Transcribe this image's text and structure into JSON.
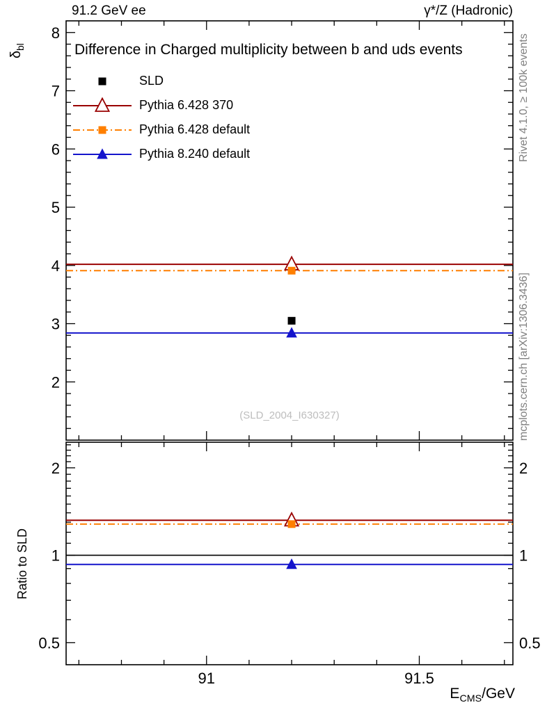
{
  "chart_data": {
    "type": "line",
    "header": {
      "left": "91.2 GeV ee",
      "right": "γ*/Z (Hadronic)"
    },
    "title": "Difference in Charged multiplicity between b and uds events",
    "watermark": "(SLD_2004_I630327)",
    "side_notes": {
      "top_right": "Rivet 4.1.0, ≥ 100k events",
      "bottom_right": "mcplots.cern.ch [arXiv:1306.3436]"
    },
    "x_axis": {
      "label_parts": {
        "symbol": "E",
        "subscript": "CMS",
        "suffix": "/GeV"
      },
      "lim": [
        90.67,
        91.72
      ],
      "major_ticks": [
        {
          "v": 91,
          "label": "91"
        },
        {
          "v": 91.5,
          "label": "91.5"
        }
      ],
      "minor_step": 0.1,
      "data_x": 91.2
    },
    "main_panel": {
      "y_label_parts": {
        "symbol": "δ",
        "subscript": "bl"
      },
      "scale": "linear",
      "ylim": [
        1.0,
        8.2
      ],
      "major_ticks": [
        {
          "v": 2,
          "label": "2"
        },
        {
          "v": 3,
          "label": "3"
        },
        {
          "v": 4,
          "label": "4"
        },
        {
          "v": 5,
          "label": "5"
        },
        {
          "v": 6,
          "label": "6"
        },
        {
          "v": 7,
          "label": "7"
        },
        {
          "v": 8,
          "label": "8"
        }
      ],
      "minor_step": 0.2
    },
    "ratio_panel": {
      "y_label": "Ratio to SLD",
      "scale": "log",
      "ylim": [
        0.42,
        2.45
      ],
      "major_ticks": [
        {
          "v": 0.5,
          "label": "0.5"
        },
        {
          "v": 1,
          "label": "1"
        },
        {
          "v": 2,
          "label": "2"
        }
      ],
      "minor_ticks": [
        0.6,
        0.7,
        0.8,
        0.9,
        1.1,
        1.2,
        1.3,
        1.4,
        1.5,
        1.6,
        1.7,
        1.8,
        1.9,
        2.1,
        2.2,
        2.3,
        2.4
      ]
    },
    "series": [
      {
        "name": "SLD",
        "color": "#000000",
        "line_style": "solid",
        "marker": "square-filled",
        "main": {
          "line": false,
          "marker": true,
          "y": 3.05
        },
        "ratio": {
          "line": true,
          "marker": false,
          "y": 1.0
        }
      },
      {
        "name": "Pythia 6.428 370",
        "color": "#990000",
        "line_style": "solid",
        "marker": "triangle-open",
        "main": {
          "line": true,
          "marker": true,
          "y": 4.02
        },
        "ratio": {
          "line": true,
          "marker": true,
          "y": 1.32
        }
      },
      {
        "name": "Pythia 6.428 default",
        "color": "#ff7f00",
        "line_style": "dashdot",
        "marker": "square-filled",
        "main": {
          "line": true,
          "marker": true,
          "y": 3.91
        },
        "ratio": {
          "line": true,
          "marker": true,
          "y": 1.28
        }
      },
      {
        "name": "Pythia 8.240 default",
        "color": "#1414cc",
        "line_style": "solid",
        "marker": "triangle-filled",
        "main": {
          "line": true,
          "marker": true,
          "y": 2.84
        },
        "ratio": {
          "line": true,
          "marker": true,
          "y": 0.93
        }
      }
    ]
  }
}
